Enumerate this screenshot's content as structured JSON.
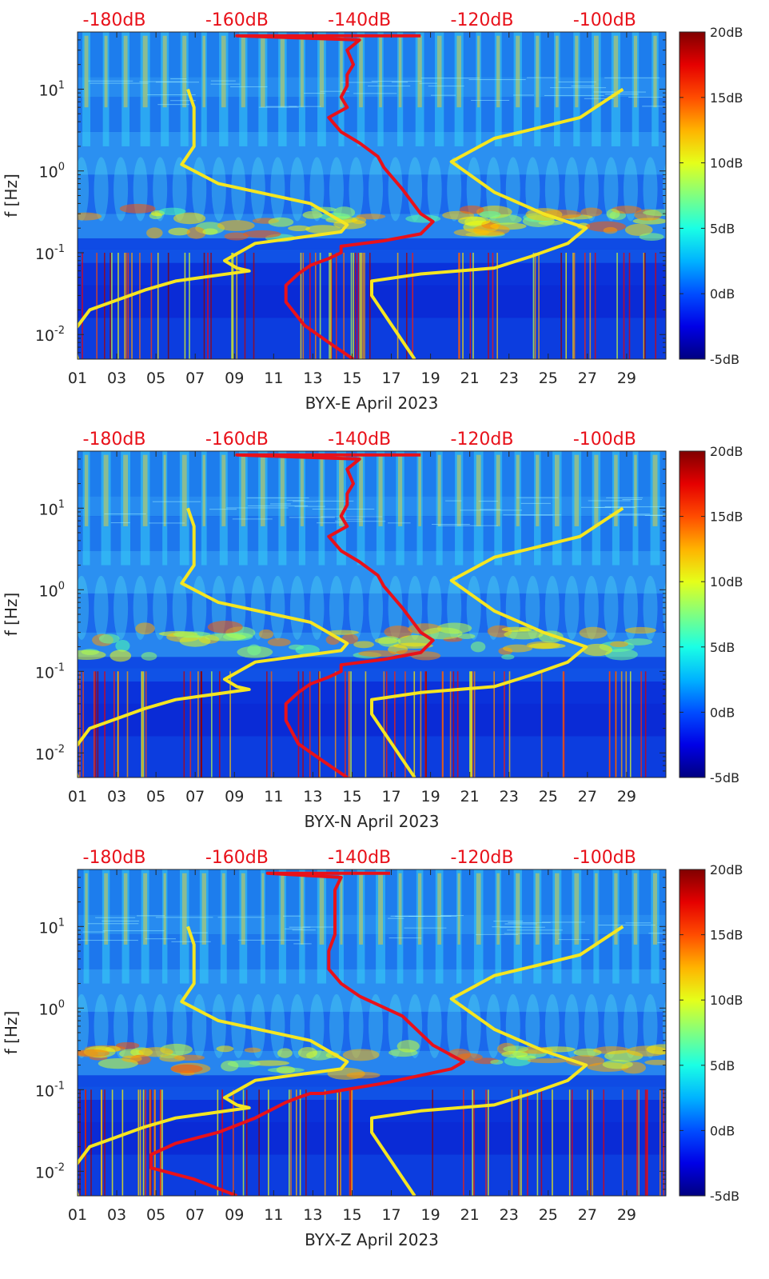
{
  "colors": {
    "background_low": "#0a2bd6",
    "background_mid": "#1f8cf0",
    "noise_model_lines": "#f5e621",
    "psd_line": "#e8111a",
    "axis_text": "#262626",
    "db_scale_text": "#e8111a"
  },
  "colorbar": {
    "ticks": [
      "-5dB",
      "0dB",
      "5dB",
      "10dB",
      "15dB",
      "20dB"
    ],
    "range": [
      -5,
      20
    ],
    "colormap": "jet"
  },
  "chart_data": [
    {
      "type": "heatmap",
      "xlabel": "BYX-E April 2023",
      "ylabel": "f [Hz]",
      "x_tick_labels": [
        "01",
        "03",
        "05",
        "07",
        "09",
        "11",
        "13",
        "15",
        "17",
        "19",
        "21",
        "23",
        "25",
        "27",
        "29"
      ],
      "x_ticks": [
        1,
        3,
        5,
        7,
        9,
        11,
        13,
        15,
        17,
        19,
        21,
        23,
        25,
        27,
        29
      ],
      "xlim": [
        1,
        31
      ],
      "y_scale": "log",
      "ylim": [
        0.005,
        50
      ],
      "y_tick_values": [
        0.01,
        0.1,
        1,
        10
      ],
      "top_axis_ticks": [
        "-180dB",
        "-160dB",
        "-140dB",
        "-120dB",
        "-100dB"
      ],
      "top_axis_values": [
        -180,
        -160,
        -140,
        -120,
        -100
      ],
      "top_axis_range": [
        -186,
        -90
      ],
      "series": [
        {
          "kind": "low-noise-model",
          "points": [
            [
              -186,
              0.005
            ],
            [
              -187,
              0.01
            ],
            [
              -184,
              0.02
            ],
            [
              -175,
              0.035
            ],
            [
              -170,
              0.045
            ],
            [
              -158,
              0.06
            ],
            [
              -160,
              0.065
            ],
            [
              -162,
              0.08
            ],
            [
              -157,
              0.13
            ],
            [
              -143,
              0.18
            ],
            [
              -142,
              0.22
            ],
            [
              -148,
              0.4
            ],
            [
              -163,
              0.7
            ],
            [
              -169,
              1.2
            ],
            [
              -167,
              2
            ],
            [
              -167,
              3.5
            ],
            [
              -167,
              6
            ],
            [
              -168,
              10
            ]
          ]
        },
        {
          "kind": "high-noise-model",
          "points": [
            [
              -131,
              0.005
            ],
            [
              -138,
              0.03
            ],
            [
              -138,
              0.045
            ],
            [
              -130,
              0.055
            ],
            [
              -118,
              0.065
            ],
            [
              -112,
              0.09
            ],
            [
              -106,
              0.13
            ],
            [
              -103,
              0.2
            ],
            [
              -110,
              0.3
            ],
            [
              -118,
              0.55
            ],
            [
              -125,
              1.3
            ],
            [
              -118,
              2.5
            ],
            [
              -112,
              3.2
            ],
            [
              -104,
              4.5
            ],
            [
              -97,
              10
            ]
          ]
        },
        {
          "kind": "psd",
          "points": [
            [
              -141,
              0.005
            ],
            [
              -145,
              0.008
            ],
            [
              -149,
              0.013
            ],
            [
              -152,
              0.025
            ],
            [
              -152,
              0.04
            ],
            [
              -150,
              0.055
            ],
            [
              -148,
              0.07
            ],
            [
              -145,
              0.085
            ],
            [
              -143,
              0.1
            ],
            [
              -143,
              0.12
            ],
            [
              -136,
              0.14
            ],
            [
              -130,
              0.17
            ],
            [
              -128,
              0.24
            ],
            [
              -130,
              0.3
            ],
            [
              -133,
              0.6
            ],
            [
              -136,
              1.1
            ],
            [
              -137,
              1.5
            ],
            [
              -140,
              2.2
            ],
            [
              -143,
              3
            ],
            [
              -145,
              4.5
            ],
            [
              -142,
              6
            ],
            [
              -143,
              8
            ],
            [
              -142,
              11
            ],
            [
              -142,
              15
            ],
            [
              -141,
              20
            ],
            [
              -142,
              30
            ],
            [
              -140,
              40
            ],
            [
              -160,
              45
            ],
            [
              -130,
              45
            ]
          ]
        }
      ]
    },
    {
      "type": "heatmap",
      "xlabel": "BYX-N April 2023",
      "ylabel": "f [Hz]",
      "x_tick_labels": [
        "01",
        "03",
        "05",
        "07",
        "09",
        "11",
        "13",
        "15",
        "17",
        "19",
        "21",
        "23",
        "25",
        "27",
        "29"
      ],
      "x_ticks": [
        1,
        3,
        5,
        7,
        9,
        11,
        13,
        15,
        17,
        19,
        21,
        23,
        25,
        27,
        29
      ],
      "xlim": [
        1,
        31
      ],
      "y_scale": "log",
      "ylim": [
        0.005,
        50
      ],
      "y_tick_values": [
        0.01,
        0.1,
        1,
        10
      ],
      "top_axis_ticks": [
        "-180dB",
        "-160dB",
        "-140dB",
        "-120dB",
        "-100dB"
      ],
      "top_axis_values": [
        -180,
        -160,
        -140,
        -120,
        -100
      ],
      "top_axis_range": [
        -186,
        -90
      ],
      "series": [
        {
          "kind": "low-noise-model",
          "points": [
            [
              -186,
              0.005
            ],
            [
              -187,
              0.01
            ],
            [
              -184,
              0.02
            ],
            [
              -175,
              0.035
            ],
            [
              -170,
              0.045
            ],
            [
              -158,
              0.06
            ],
            [
              -160,
              0.065
            ],
            [
              -162,
              0.08
            ],
            [
              -157,
              0.13
            ],
            [
              -143,
              0.18
            ],
            [
              -142,
              0.22
            ],
            [
              -148,
              0.4
            ],
            [
              -163,
              0.7
            ],
            [
              -169,
              1.2
            ],
            [
              -167,
              2
            ],
            [
              -167,
              3.5
            ],
            [
              -167,
              6
            ],
            [
              -168,
              10
            ]
          ]
        },
        {
          "kind": "high-noise-model",
          "points": [
            [
              -131,
              0.005
            ],
            [
              -138,
              0.03
            ],
            [
              -138,
              0.045
            ],
            [
              -130,
              0.055
            ],
            [
              -118,
              0.065
            ],
            [
              -112,
              0.09
            ],
            [
              -106,
              0.13
            ],
            [
              -103,
              0.2
            ],
            [
              -110,
              0.3
            ],
            [
              -118,
              0.55
            ],
            [
              -125,
              1.3
            ],
            [
              -118,
              2.5
            ],
            [
              -112,
              3.2
            ],
            [
              -104,
              4.5
            ],
            [
              -97,
              10
            ]
          ]
        },
        {
          "kind": "psd",
          "points": [
            [
              -142,
              0.005
            ],
            [
              -146,
              0.008
            ],
            [
              -150,
              0.013
            ],
            [
              -152,
              0.025
            ],
            [
              -152,
              0.04
            ],
            [
              -150,
              0.055
            ],
            [
              -148,
              0.07
            ],
            [
              -145,
              0.085
            ],
            [
              -143,
              0.1
            ],
            [
              -143,
              0.12
            ],
            [
              -136,
              0.14
            ],
            [
              -130,
              0.17
            ],
            [
              -128,
              0.24
            ],
            [
              -130,
              0.3
            ],
            [
              -133,
              0.6
            ],
            [
              -136,
              1.1
            ],
            [
              -137,
              1.5
            ],
            [
              -140,
              2.2
            ],
            [
              -143,
              3
            ],
            [
              -145,
              4.5
            ],
            [
              -142,
              6
            ],
            [
              -143,
              8
            ],
            [
              -142,
              11
            ],
            [
              -142,
              15
            ],
            [
              -141,
              20
            ],
            [
              -142,
              30
            ],
            [
              -140,
              40
            ],
            [
              -160,
              45
            ],
            [
              -130,
              45
            ]
          ]
        }
      ]
    },
    {
      "type": "heatmap",
      "xlabel": "BYX-Z April 2023",
      "ylabel": "f [Hz]",
      "x_tick_labels": [
        "01",
        "03",
        "05",
        "07",
        "09",
        "11",
        "13",
        "15",
        "17",
        "19",
        "21",
        "23",
        "25",
        "27",
        "29"
      ],
      "x_ticks": [
        1,
        3,
        5,
        7,
        9,
        11,
        13,
        15,
        17,
        19,
        21,
        23,
        25,
        27,
        29
      ],
      "xlim": [
        1,
        31
      ],
      "y_scale": "log",
      "ylim": [
        0.005,
        50
      ],
      "y_tick_values": [
        0.01,
        0.1,
        1,
        10
      ],
      "top_axis_ticks": [
        "-180dB",
        "-160dB",
        "-140dB",
        "-120dB",
        "-100dB"
      ],
      "top_axis_values": [
        -180,
        -160,
        -140,
        -120,
        -100
      ],
      "top_axis_range": [
        -186,
        -90
      ],
      "series": [
        {
          "kind": "low-noise-model",
          "points": [
            [
              -186,
              0.005
            ],
            [
              -187,
              0.01
            ],
            [
              -184,
              0.02
            ],
            [
              -175,
              0.035
            ],
            [
              -170,
              0.045
            ],
            [
              -158,
              0.06
            ],
            [
              -160,
              0.065
            ],
            [
              -162,
              0.08
            ],
            [
              -157,
              0.13
            ],
            [
              -143,
              0.18
            ],
            [
              -142,
              0.22
            ],
            [
              -148,
              0.4
            ],
            [
              -163,
              0.7
            ],
            [
              -169,
              1.2
            ],
            [
              -167,
              2
            ],
            [
              -167,
              3.5
            ],
            [
              -167,
              6
            ],
            [
              -168,
              10
            ]
          ]
        },
        {
          "kind": "high-noise-model",
          "points": [
            [
              -131,
              0.005
            ],
            [
              -138,
              0.03
            ],
            [
              -138,
              0.045
            ],
            [
              -130,
              0.055
            ],
            [
              -118,
              0.065
            ],
            [
              -112,
              0.09
            ],
            [
              -106,
              0.13
            ],
            [
              -103,
              0.2
            ],
            [
              -110,
              0.3
            ],
            [
              -118,
              0.55
            ],
            [
              -125,
              1.3
            ],
            [
              -118,
              2.5
            ],
            [
              -112,
              3.2
            ],
            [
              -104,
              4.5
            ],
            [
              -97,
              10
            ]
          ]
        },
        {
          "kind": "psd",
          "points": [
            [
              -160,
              0.005
            ],
            [
              -167,
              0.008
            ],
            [
              -174,
              0.011
            ],
            [
              -174,
              0.016
            ],
            [
              -170,
              0.022
            ],
            [
              -163,
              0.03
            ],
            [
              -157,
              0.045
            ],
            [
              -152,
              0.07
            ],
            [
              -150,
              0.08
            ],
            [
              -148,
              0.09
            ],
            [
              -146,
              0.09
            ],
            [
              -136,
              0.12
            ],
            [
              -125,
              0.18
            ],
            [
              -123,
              0.22
            ],
            [
              -128,
              0.35
            ],
            [
              -133,
              0.8
            ],
            [
              -140,
              1.4
            ],
            [
              -143,
              2
            ],
            [
              -145,
              3
            ],
            [
              -145,
              5
            ],
            [
              -144,
              8
            ],
            [
              -144,
              12
            ],
            [
              -144,
              18
            ],
            [
              -144,
              28
            ],
            [
              -143,
              40
            ],
            [
              -155,
              45
            ],
            [
              -135,
              45
            ]
          ]
        }
      ]
    }
  ]
}
